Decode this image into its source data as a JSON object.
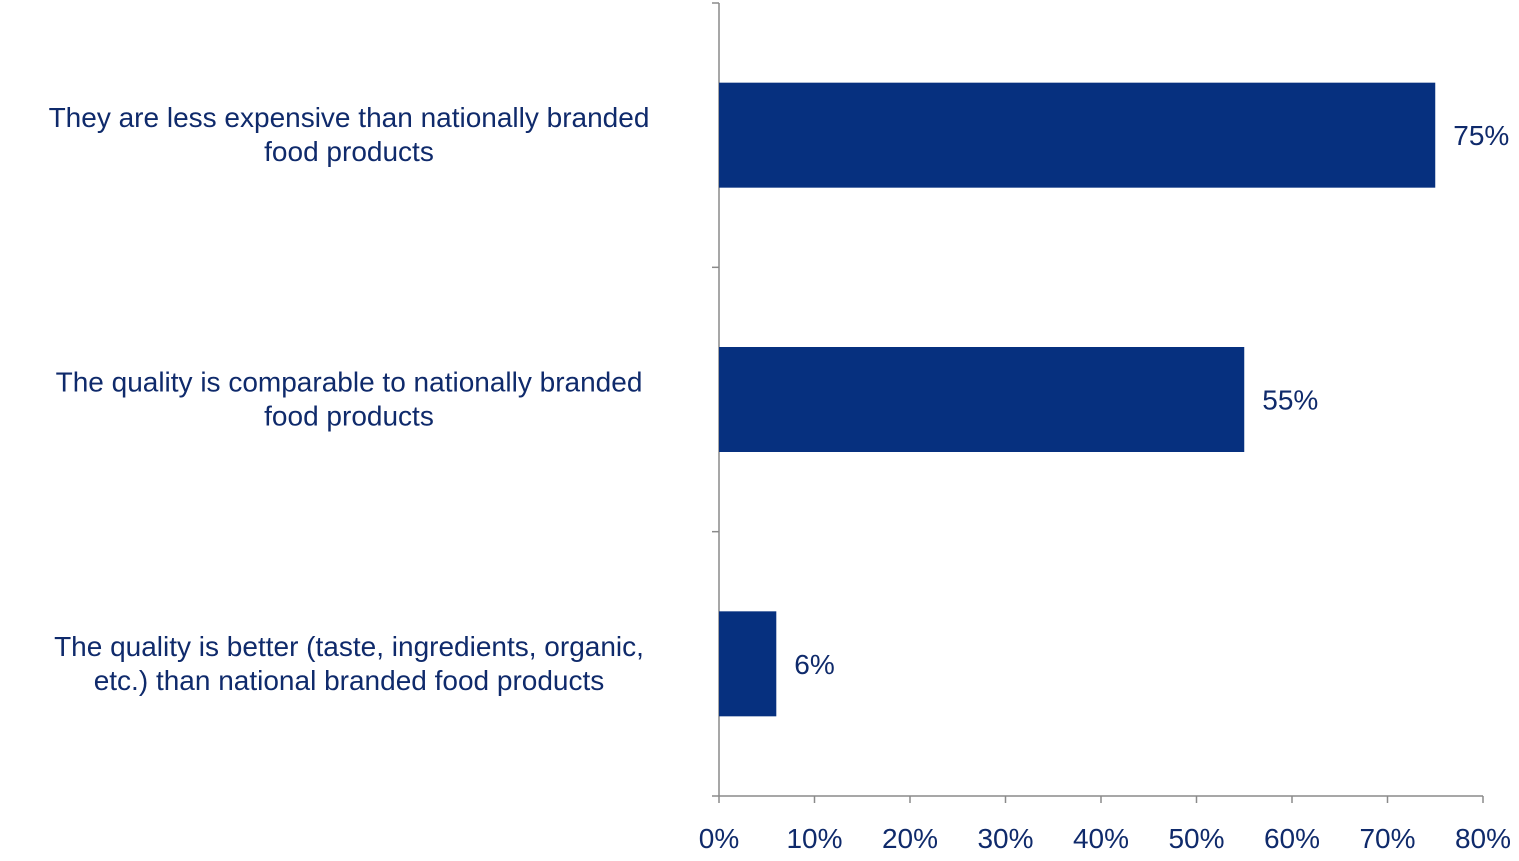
{
  "chart_data": {
    "type": "bar",
    "orientation": "horizontal",
    "categories": [
      [
        "They are less expensive than nationally branded",
        "food products"
      ],
      [
        "The quality is comparable to nationally branded",
        "food products"
      ],
      [
        "The quality is better (taste, ingredients, organic,",
        "etc.) than national branded food products"
      ]
    ],
    "values": [
      75,
      55,
      6
    ],
    "value_labels": [
      "75%",
      "55%",
      "6%"
    ],
    "xlim": [
      0,
      80
    ],
    "x_ticks": [
      0,
      10,
      20,
      30,
      40,
      50,
      60,
      70,
      80
    ],
    "x_tick_labels": [
      "0%",
      "10%",
      "20%",
      "30%",
      "40%",
      "50%",
      "60%",
      "70%",
      "80%"
    ],
    "title": "",
    "xlabel": "",
    "ylabel": "",
    "grid": false,
    "bar_color": "#06307f"
  }
}
